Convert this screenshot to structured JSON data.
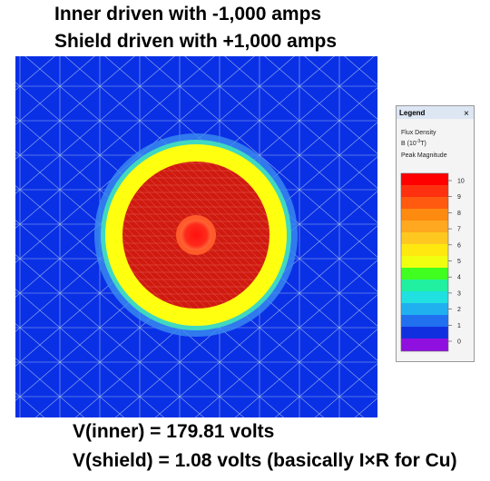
{
  "header": {
    "lines": [
      "Inner driven with -1,000 amps",
      "Shield driven with +1,000 amps"
    ]
  },
  "legend": {
    "title": "Legend",
    "quantity": "Flux Density",
    "unit_prefix": "B (10",
    "unit_exponent": "-3",
    "unit_suffix": "T)",
    "mode": "Peak Magnitude",
    "scale": [
      10,
      9,
      8,
      7,
      6,
      5,
      4,
      3,
      2,
      1,
      0
    ]
  },
  "footer": {
    "lines": [
      "V(inner) = 179.81 volts",
      "V(shield) = 1.08 volts (basically I×R for Cu)"
    ]
  }
}
